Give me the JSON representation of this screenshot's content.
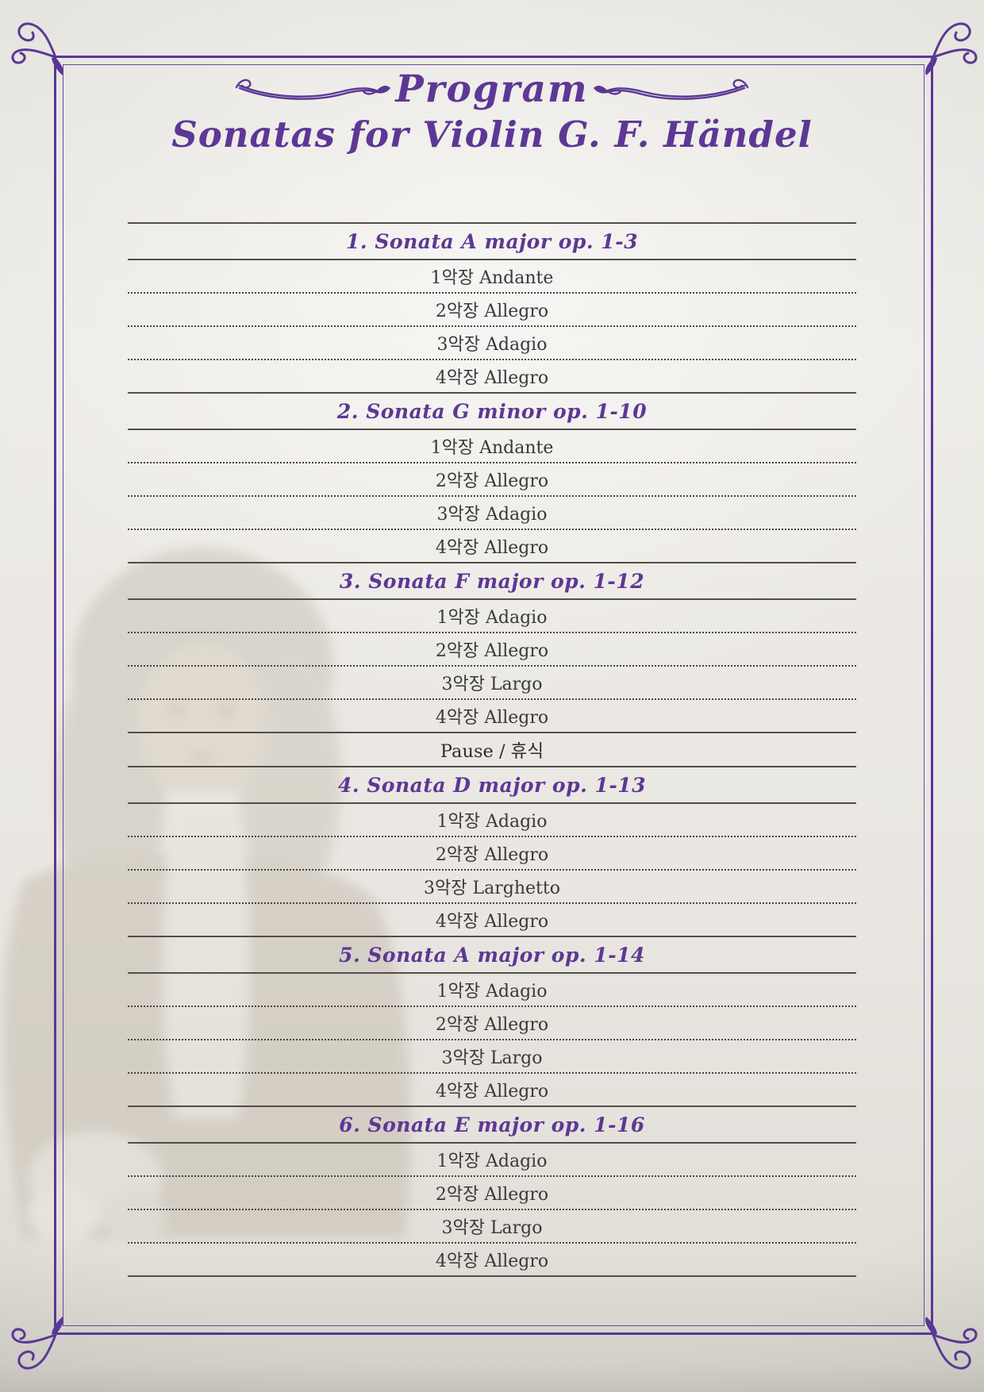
{
  "page": {
    "title": "Program",
    "subtitle": "Sonatas for Violin G. F. Händel"
  },
  "program": {
    "sections": [
      {
        "type": "sonata",
        "title": "1. Sonata A major op. 1-3",
        "movements": [
          "1악장 Andante",
          "2악장 Allegro",
          "3악장 Adagio",
          "4악장 Allegro"
        ]
      },
      {
        "type": "sonata",
        "title": "2. Sonata G minor op. 1-10",
        "movements": [
          "1악장 Andante",
          "2악장 Allegro",
          "3악장 Adagio",
          "4악장 Allegro"
        ]
      },
      {
        "type": "sonata",
        "title": "3. Sonata F major op. 1-12",
        "movements": [
          "1악장 Adagio",
          "2악장 Allegro",
          "3악장 Largo",
          "4악장 Allegro"
        ]
      },
      {
        "type": "pause",
        "label": "Pause / 휴식"
      },
      {
        "type": "sonata",
        "title": "4. Sonata D major op. 1-13",
        "movements": [
          "1악장 Adagio",
          "2악장 Allegro",
          "3악장 Larghetto",
          "4악장 Allegro"
        ]
      },
      {
        "type": "sonata",
        "title": "5. Sonata A major op. 1-14",
        "movements": [
          "1악장 Adagio",
          "2악장 Allegro",
          "3악장 Largo",
          "4악장 Allegro"
        ]
      },
      {
        "type": "sonata",
        "title": "6. Sonata E major op. 1-16",
        "movements": [
          "1악장 Adagio",
          "2악장 Allegro",
          "3악장 Largo",
          "4악장 Allegro"
        ]
      }
    ]
  },
  "decorations": {
    "corner_flourish_icon": "corner-swirl",
    "title_flourish_icon": "calligraphic-swash",
    "watermark_icon": "handel-portrait-faint"
  },
  "colors": {
    "accent_purple": "#5b3794",
    "heading_purple": "#5e3796",
    "text_dark": "#39393b",
    "solid_line": "#514e4a",
    "dotted_line": "#454341",
    "background": "#eae7e2"
  }
}
